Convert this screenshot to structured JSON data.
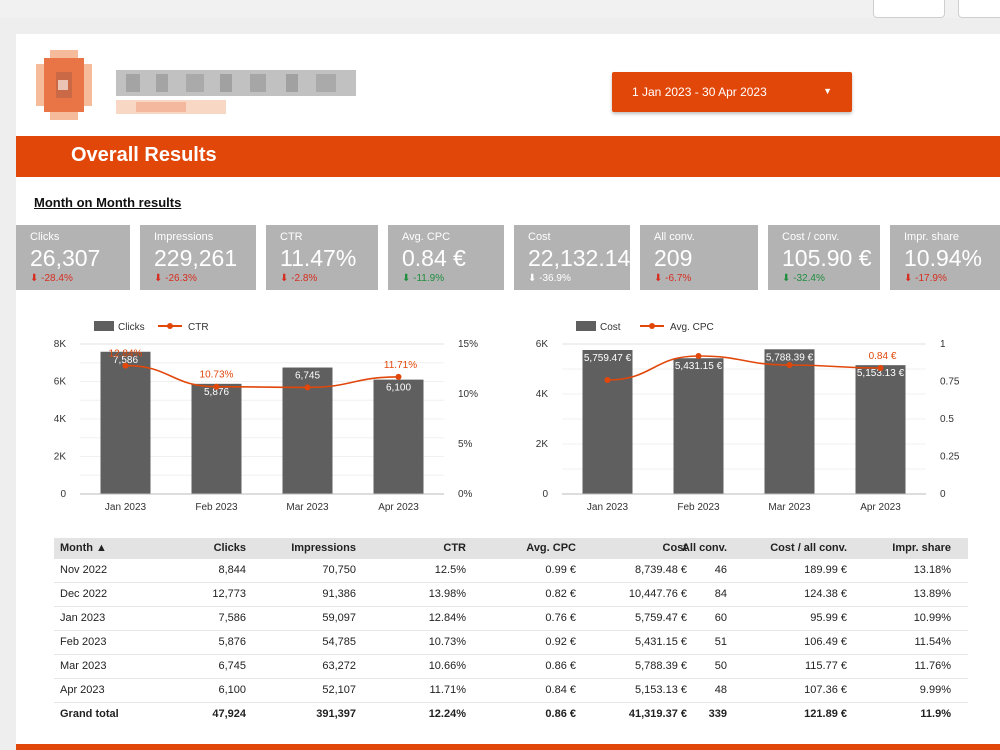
{
  "report": {
    "date_range": "1 Jan 2023 - 30 Apr 2023",
    "banner_title": "Overall Results",
    "section_title": "Month on Month results"
  },
  "colors": {
    "accent": "#e2470a",
    "kpi_bg": "#b3b3b3",
    "bar": "#5f5f5f",
    "negative": "#d62d20",
    "positive": "#1e8e3e"
  },
  "kpis": [
    {
      "label": "Clicks",
      "value": "26,307",
      "delta": "-28.4%",
      "dir": "down",
      "good": false
    },
    {
      "label": "Impressions",
      "value": "229,261",
      "delta": "-26.3%",
      "dir": "down",
      "good": false
    },
    {
      "label": "CTR",
      "value": "11.47%",
      "delta": "-2.8%",
      "dir": "down",
      "good": false
    },
    {
      "label": "Avg. CPC",
      "value": "0.84 €",
      "delta": "-11.9%",
      "dir": "down",
      "good": true
    },
    {
      "label": "Cost",
      "value": "22,132.14 €",
      "delta": "-36.9%",
      "dir": "down",
      "good": null
    },
    {
      "label": "All conv.",
      "value": "209",
      "delta": "-6.7%",
      "dir": "down",
      "good": false
    },
    {
      "label": "Cost / conv.",
      "value": "105.90 €",
      "delta": "-32.4%",
      "dir": "down",
      "good": true
    },
    {
      "label": "Impr. share",
      "value": "10.94%",
      "delta": "-17.9%",
      "dir": "down",
      "good": false
    }
  ],
  "chart_data": [
    {
      "type": "bar",
      "categories": [
        "Jan 2023",
        "Feb 2023",
        "Mar 2023",
        "Apr 2023"
      ],
      "series": [
        {
          "name": "Clicks",
          "type": "bar",
          "axis": "left",
          "values": [
            7586,
            5876,
            6745,
            6100
          ],
          "labels": [
            "7,586",
            "5,876",
            "6,745",
            "6,100"
          ]
        },
        {
          "name": "CTR",
          "type": "line",
          "axis": "right",
          "values": [
            12.84,
            10.73,
            10.66,
            11.71
          ],
          "labels": [
            "12.84%",
            "10.73%",
            "",
            "11.71%"
          ]
        }
      ],
      "left_axis": {
        "min": 0,
        "max": 8000,
        "ticks": [
          "0",
          "2K",
          "4K",
          "6K",
          "8K"
        ]
      },
      "right_axis": {
        "min": 0,
        "max": 15,
        "ticks": [
          "0%",
          "5%",
          "10%",
          "15%"
        ]
      },
      "legend": "top-left",
      "grid": true
    },
    {
      "type": "bar",
      "categories": [
        "Jan 2023",
        "Feb 2023",
        "Mar 2023",
        "Apr 2023"
      ],
      "series": [
        {
          "name": "Cost",
          "type": "bar",
          "axis": "left",
          "values": [
            5759.47,
            5431.15,
            5788.39,
            5153.13
          ],
          "labels": [
            "5,759.47 €",
            "5,431.15 €",
            "5,788.39 €",
            "5,153.13 €"
          ]
        },
        {
          "name": "Avg. CPC",
          "type": "line",
          "axis": "right",
          "values": [
            0.76,
            0.92,
            0.86,
            0.84
          ],
          "labels": [
            "",
            "",
            "",
            "0.84 €"
          ]
        }
      ],
      "left_axis": {
        "min": 0,
        "max": 6000,
        "ticks": [
          "0",
          "2K",
          "4K",
          "6K"
        ]
      },
      "right_axis": {
        "min": 0,
        "max": 1,
        "ticks": [
          "0",
          "0.25",
          "0.5",
          "0.75",
          "1"
        ]
      },
      "legend": "top-left",
      "grid": true
    }
  ],
  "table": {
    "headers": [
      "Month ▲",
      "Clicks",
      "Impressions",
      "CTR",
      "Avg. CPC",
      "Cost",
      "All conv.",
      "Cost / all conv.",
      "Impr. share"
    ],
    "rows": [
      [
        "Nov 2022",
        "8,844",
        "70,750",
        "12.5%",
        "0.99 €",
        "8,739.48 €",
        "46",
        "189.99 €",
        "13.18%"
      ],
      [
        "Dec 2022",
        "12,773",
        "91,386",
        "13.98%",
        "0.82 €",
        "10,447.76 €",
        "84",
        "124.38 €",
        "13.89%"
      ],
      [
        "Jan 2023",
        "7,586",
        "59,097",
        "12.84%",
        "0.76 €",
        "5,759.47 €",
        "60",
        "95.99 €",
        "10.99%"
      ],
      [
        "Feb 2023",
        "5,876",
        "54,785",
        "10.73%",
        "0.92 €",
        "5,431.15 €",
        "51",
        "106.49 €",
        "11.54%"
      ],
      [
        "Mar 2023",
        "6,745",
        "63,272",
        "10.66%",
        "0.86 €",
        "5,788.39 €",
        "50",
        "115.77 €",
        "11.76%"
      ],
      [
        "Apr 2023",
        "6,100",
        "52,107",
        "11.71%",
        "0.84 €",
        "5,153.13 €",
        "48",
        "107.36 €",
        "9.99%"
      ]
    ],
    "total": [
      "Grand total",
      "47,924",
      "391,397",
      "12.24%",
      "0.86 €",
      "41,319.37 €",
      "339",
      "121.89 €",
      "11.9%"
    ]
  }
}
